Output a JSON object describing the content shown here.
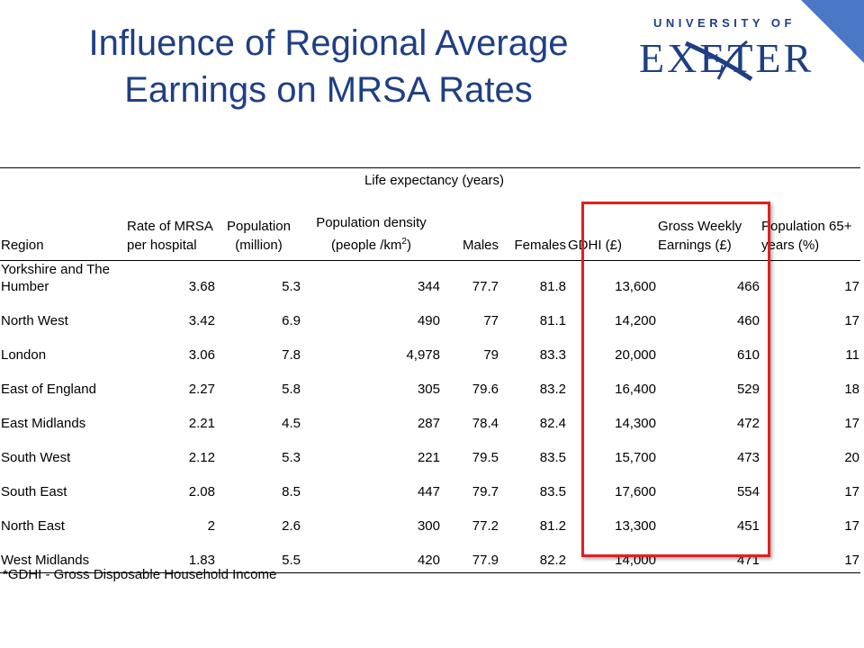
{
  "title_line1": "Influence of Regional Average",
  "title_line2": "Earnings on MRSA Rates",
  "logo": {
    "top_text": "UNIVERSITY OF",
    "word": "EXETER"
  },
  "colors": {
    "title": "#1f3f84",
    "corner": "#4a78c6",
    "highlight": "#e02020"
  },
  "table": {
    "group_header": "Life expectancy (years)",
    "headers": {
      "region": "Region",
      "mrsa": "Rate of MRSA per hospital",
      "population": "Population (million)",
      "density": "Population density (people /km",
      "density_sup": "2",
      "density_close": ")",
      "males": "Males",
      "females": "Females",
      "gdhi": "GDHI (£)",
      "earnings": "Gross Weekly Earnings (£)",
      "pop65": "Population 65+ years (%)"
    },
    "rows": [
      [
        "Yorkshire and The Humber",
        "3.68",
        "5.3",
        "344",
        "77.7",
        "81.8",
        "13,600",
        "466",
        "17"
      ],
      [
        "North West",
        "3.42",
        "6.9",
        "490",
        "77",
        "81.1",
        "14,200",
        "460",
        "17"
      ],
      [
        "London",
        "3.06",
        "7.8",
        "4,978",
        "79",
        "83.3",
        "20,000",
        "610",
        "11"
      ],
      [
        "East of England",
        "2.27",
        "5.8",
        "305",
        "79.6",
        "83.2",
        "16,400",
        "529",
        "18"
      ],
      [
        "East Midlands",
        "2.21",
        "4.5",
        "287",
        "78.4",
        "82.4",
        "14,300",
        "472",
        "17"
      ],
      [
        "South West",
        "2.12",
        "5.3",
        "221",
        "79.5",
        "83.5",
        "15,700",
        "473",
        "20"
      ],
      [
        "South East",
        "2.08",
        "8.5",
        "447",
        "79.7",
        "83.5",
        "17,600",
        "554",
        "17"
      ],
      [
        "North East",
        "2",
        "2.6",
        "300",
        "77.2",
        "81.2",
        "13,300",
        "451",
        "17"
      ],
      [
        "West Midlands",
        "1.83",
        "5.5",
        "420",
        "77.9",
        "82.2",
        "14,000",
        "471",
        "17"
      ]
    ]
  },
  "footnote": "*GDHI - Gross Disposable Household Income"
}
